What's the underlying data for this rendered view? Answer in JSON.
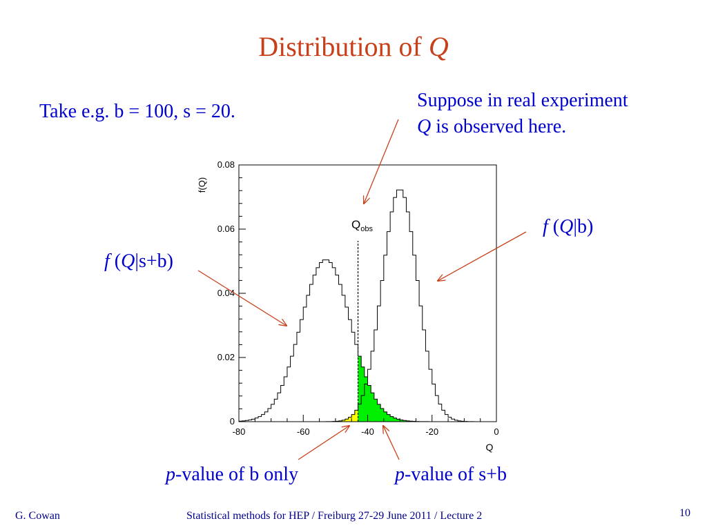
{
  "slide": {
    "title_text": "Distribution of ",
    "title_var": "Q",
    "example": "Take e.g. b = 100, s = 20.",
    "suppose_line1": "Suppose in real experiment",
    "suppose_var": "Q",
    "suppose_line2": " is observed here.",
    "fqb": {
      "f": "f",
      "open": " (",
      "var": "Q",
      "rest": "|b)"
    },
    "fqsb": {
      "f": "f",
      "open": " (",
      "var": "Q",
      "rest": "|s+b)"
    },
    "pvalue_b": {
      "p": "p",
      "rest": "-value of b only"
    },
    "pvalue_sb": {
      "p": "p",
      "rest": "-value of s+b"
    },
    "footer_left": "G. Cowan",
    "footer_center": "Statistical methods for HEP / Freiburg 27-29 June 2011 / Lecture 2",
    "page_number": "10"
  },
  "colors": {
    "title": "#c8401a",
    "text": "#0000cc",
    "arrow": "#c8401a",
    "fill_sb": "#00ee00",
    "fill_b": "#ffff00"
  },
  "chart_data": {
    "type": "area",
    "xlabel": "Q",
    "ylabel": "f(Q)",
    "xlim": [
      -80,
      0
    ],
    "ylim": [
      0,
      0.08
    ],
    "xticks": [
      -80,
      -60,
      -40,
      -20,
      0
    ],
    "xtick_labels": [
      "-80",
      "-60",
      "-40",
      "-20",
      "0"
    ],
    "yticks": [
      0,
      0.02,
      0.04,
      0.06,
      0.08
    ],
    "ytick_labels": [
      "0",
      "0.02",
      "0.04",
      "0.06",
      "0.08"
    ],
    "q_obs": -43,
    "q_obs_label": "Q",
    "q_obs_subscript": "obs",
    "series": [
      {
        "mean": -53,
        "sigma": 7.8,
        "peak": 0.0505,
        "fill": "right-of-obs"
      },
      {
        "mean": -30,
        "sigma": 5.5,
        "peak": 0.0725,
        "fill": "left-of-obs"
      }
    ]
  }
}
